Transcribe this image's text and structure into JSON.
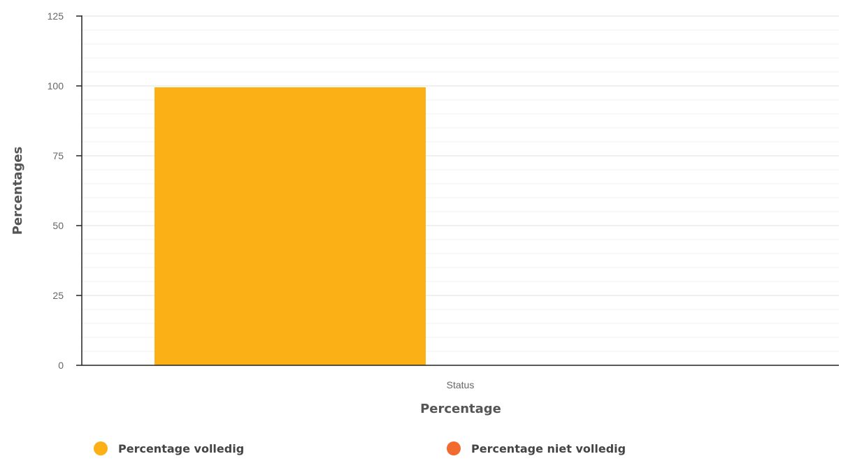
{
  "chart_data": {
    "type": "bar",
    "title": "",
    "categories": [
      "Status"
    ],
    "series": [
      {
        "name": "Percentage volledig",
        "values": [
          99.5
        ],
        "color": "#FBB016"
      },
      {
        "name": "Percentage niet volledig",
        "values": [
          0
        ],
        "color": "#F26A2E"
      }
    ],
    "xlabel": "Percentage",
    "ylabel": "Percentages",
    "ylim": [
      0,
      125
    ],
    "yticks": [
      0,
      25,
      50,
      75,
      100,
      125
    ],
    "grid": true,
    "legend_position": "bottom"
  }
}
